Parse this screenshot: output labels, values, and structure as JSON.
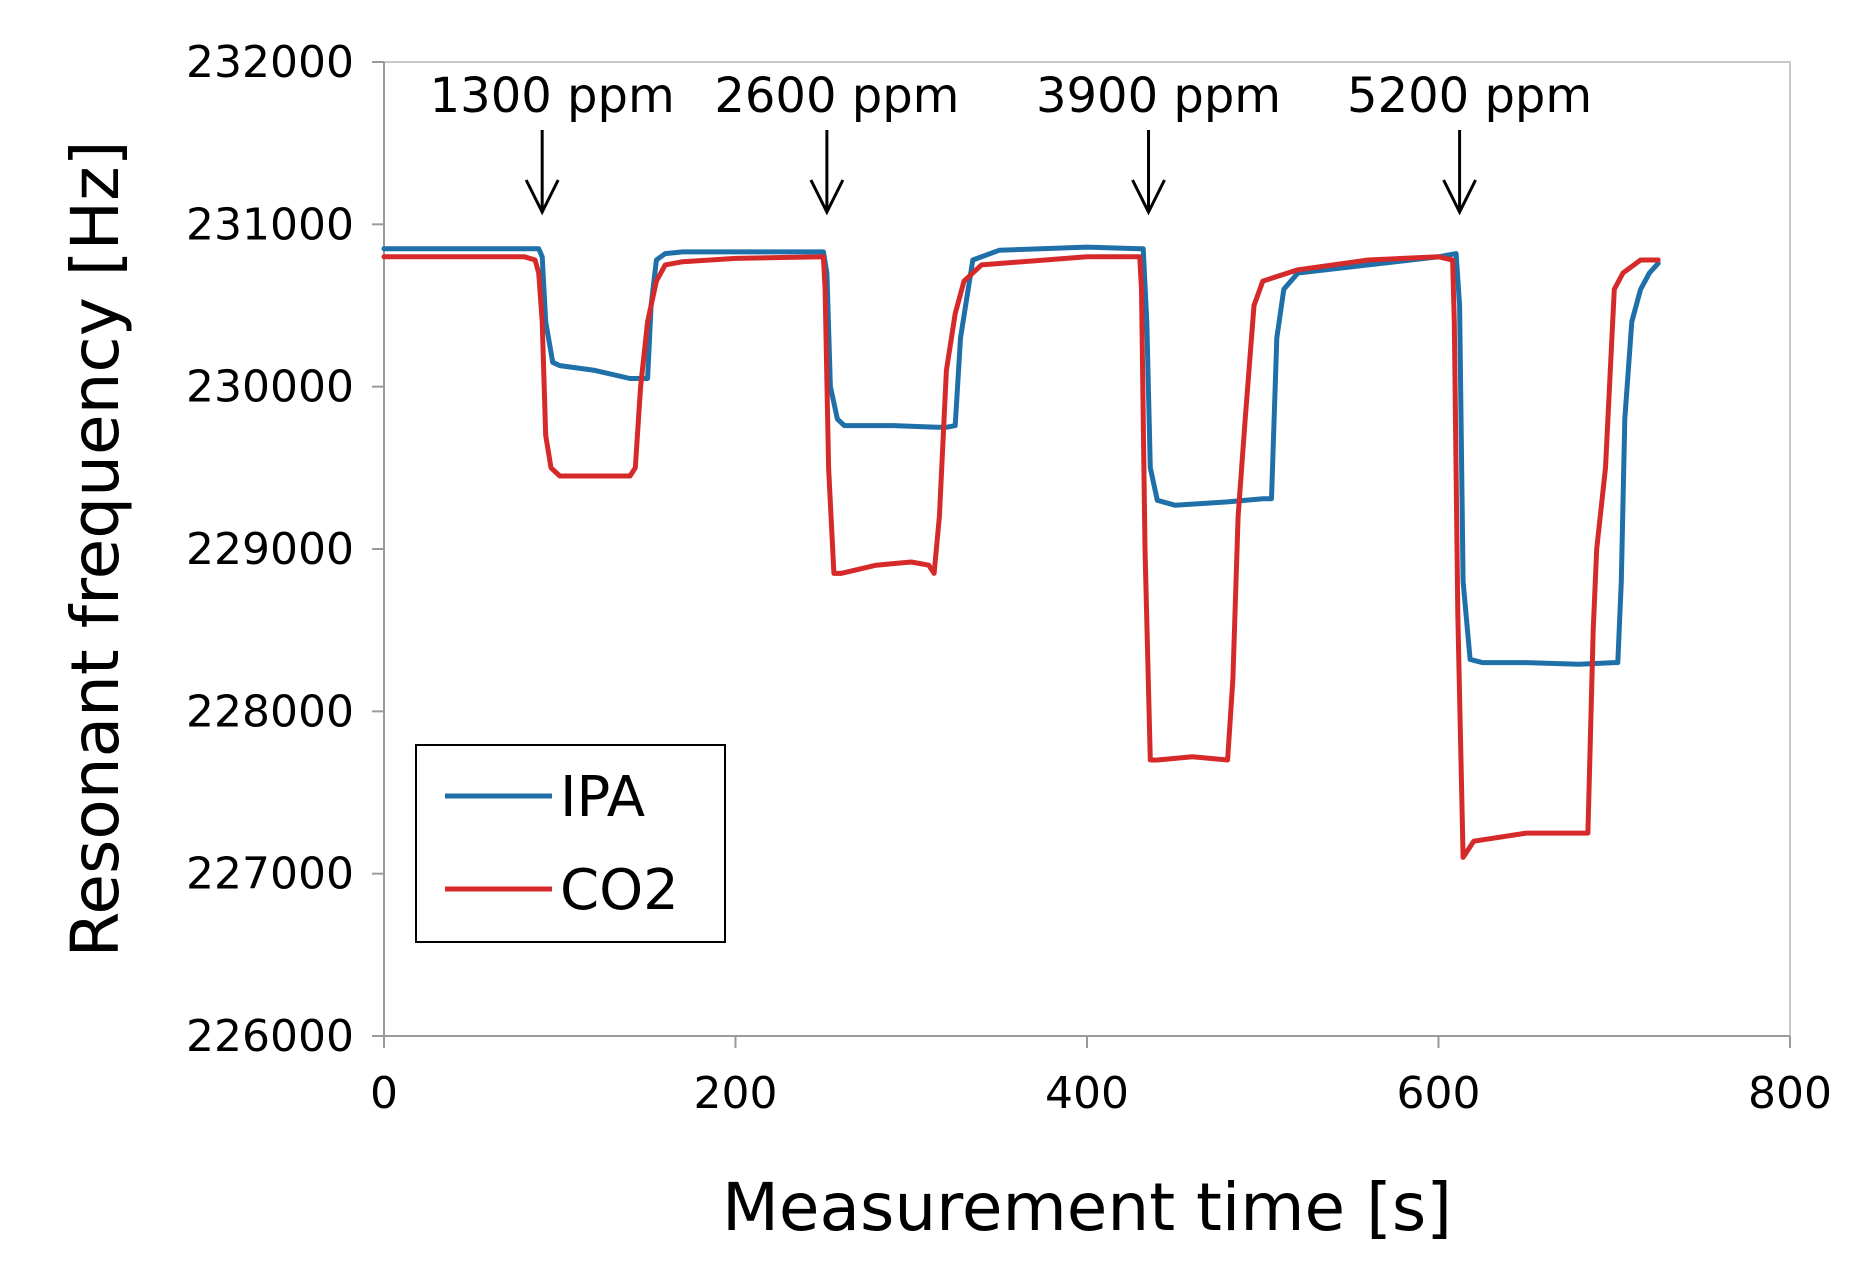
{
  "chart_data": {
    "type": "line",
    "title": "",
    "xlabel": "Measurement time [s]",
    "ylabel": "Resonant frequency [Hz]",
    "xlim": [
      0,
      800
    ],
    "ylim": [
      226000,
      232000
    ],
    "xticks": [
      0,
      200,
      400,
      600,
      800
    ],
    "xtick_labels": [
      "0",
      "200",
      "400",
      "600",
      "800"
    ],
    "yticks": [
      226000,
      227000,
      228000,
      229000,
      230000,
      231000,
      232000
    ],
    "ytick_labels": [
      "226000",
      "227000",
      "228000",
      "229000",
      "230000",
      "231000",
      "232000"
    ],
    "grid": false,
    "legend_position": "lower-left",
    "annotations": [
      {
        "label": "1300 ppm",
        "x": 90
      },
      {
        "label": "2600 ppm",
        "x": 252
      },
      {
        "label": "3900 ppm",
        "x": 435
      },
      {
        "label": "5200 ppm",
        "x": 612
      }
    ],
    "series": [
      {
        "name": "IPA",
        "color": "#1f6fa8",
        "x": [
          0,
          88,
          90,
          92,
          96,
          100,
          120,
          140,
          145,
          150,
          152,
          155,
          160,
          170,
          200,
          250,
          252,
          254,
          258,
          262,
          290,
          315,
          320,
          325,
          328,
          335,
          350,
          400,
          430,
          432,
          434,
          436,
          440,
          450,
          480,
          500,
          505,
          508,
          512,
          520,
          560,
          600,
          610,
          612,
          614,
          618,
          625,
          650,
          680,
          700,
          702,
          704,
          706,
          710,
          715,
          720,
          725
        ],
        "values": [
          230850,
          230850,
          230800,
          230400,
          230150,
          230130,
          230100,
          230050,
          230050,
          230050,
          230500,
          230780,
          230820,
          230830,
          230830,
          230830,
          230700,
          230000,
          229800,
          229760,
          229760,
          229750,
          229750,
          229760,
          230300,
          230780,
          230840,
          230860,
          230850,
          230850,
          230400,
          229500,
          229300,
          229270,
          229290,
          229310,
          229310,
          230300,
          230600,
          230700,
          230750,
          230800,
          230820,
          230500,
          228800,
          228320,
          228300,
          228300,
          228290,
          228300,
          228300,
          228800,
          229800,
          230400,
          230600,
          230700,
          230760
        ]
      },
      {
        "name": "CO2",
        "color": "#d62a2a",
        "x": [
          0,
          80,
          86,
          88,
          90,
          92,
          95,
          100,
          120,
          140,
          143,
          146,
          150,
          155,
          160,
          170,
          200,
          250,
          251,
          253,
          256,
          260,
          280,
          300,
          310,
          313,
          316,
          320,
          325,
          330,
          340,
          400,
          430,
          431,
          433,
          436,
          440,
          460,
          480,
          483,
          486,
          490,
          495,
          500,
          520,
          560,
          600,
          608,
          609,
          611,
          614,
          620,
          650,
          680,
          685,
          688,
          690,
          695,
          700,
          705,
          715,
          725
        ],
        "values": [
          230800,
          230800,
          230780,
          230700,
          230400,
          229700,
          229500,
          229450,
          229450,
          229450,
          229500,
          230000,
          230400,
          230650,
          230750,
          230770,
          230790,
          230800,
          230600,
          229500,
          228850,
          228850,
          228900,
          228920,
          228900,
          228850,
          229200,
          230100,
          230450,
          230650,
          230750,
          230800,
          230800,
          230600,
          229000,
          227700,
          227700,
          227720,
          227700,
          228200,
          229200,
          229800,
          230500,
          230650,
          230720,
          230780,
          230800,
          230780,
          230400,
          228600,
          227100,
          227200,
          227250,
          227250,
          227250,
          228500,
          229000,
          229500,
          230600,
          230700,
          230780,
          230780
        ]
      }
    ]
  }
}
